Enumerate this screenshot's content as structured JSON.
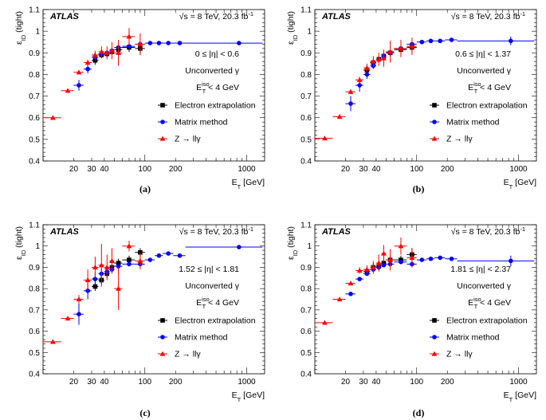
{
  "chart_data": [
    {
      "type": "scatter",
      "panel_label": "(a)",
      "experiment": "ATLAS",
      "energy_label": "√s = 8 TeV, 20.3 fb",
      "energy_exp": "-1",
      "eta_region": "0 ≤ |η| < 0.6",
      "conversion": "Unconverted γ",
      "iso_cut": {
        "base": "E",
        "sub": "T",
        "sup": "iso",
        "rest": " < 4 GeV"
      },
      "ylabel": {
        "base": "ε",
        "sub": "ID",
        "rest": " (tight)"
      },
      "xlabel": {
        "base": "E",
        "sub": "T",
        "rest": " [GeV]"
      },
      "xscale": "log",
      "xlim": [
        10,
        1500
      ],
      "ylim": [
        0.4,
        1.1
      ],
      "yticks": [
        "0.4",
        "0.5",
        "0.6",
        "0.7",
        "0.8",
        "0.9",
        "1",
        "1.1"
      ],
      "xticks": [
        "20",
        "30",
        "40",
        "100",
        "200",
        "1000"
      ],
      "legend": [
        "Electron extrapolation",
        "Matrix method",
        "Z → llγ"
      ],
      "series": [
        {
          "name": "Electron extrapolation",
          "color": "#000000",
          "marker": "square",
          "x": [
            32.5,
            37.5,
            42.5,
            47.5,
            55,
            70,
            90
          ],
          "xerr": [
            2.5,
            2.5,
            2.5,
            2.5,
            5,
            10,
            10
          ],
          "y": [
            0.865,
            0.89,
            0.895,
            0.905,
            0.915,
            0.925,
            0.92
          ],
          "yerr": [
            0.02,
            0.015,
            0.015,
            0.015,
            0.015,
            0.02,
            0.025
          ]
        },
        {
          "name": "Matrix method",
          "color": "#0000ff",
          "marker": "circle",
          "x": [
            22.5,
            27.5,
            32.5,
            37.5,
            42.5,
            47.5,
            55,
            70,
            90,
            112.5,
            137.5,
            170,
            220,
            840
          ],
          "xerr": [
            2.5,
            2.5,
            2.5,
            2.5,
            2.5,
            2.5,
            5,
            10,
            10,
            12.5,
            12.5,
            20,
            30,
            590
          ],
          "y": [
            0.75,
            0.825,
            0.88,
            0.895,
            0.9,
            0.91,
            0.925,
            0.93,
            0.94,
            0.945,
            0.945,
            0.945,
            0.945,
            0.945
          ],
          "yerr": [
            0.025,
            0.02,
            0.015,
            0.01,
            0.01,
            0.008,
            0.008,
            0.006,
            0.006,
            0.006,
            0.006,
            0.006,
            0.006,
            0.008
          ]
        },
        {
          "name": "Z → llγ",
          "color": "#ff0000",
          "marker": "triangle",
          "x": [
            12.5,
            17.5,
            22.5,
            27.5,
            32.5,
            37.5,
            42.5,
            47.5,
            55,
            70,
            90
          ],
          "xerr": [
            2.5,
            2.5,
            2.5,
            2.5,
            2.5,
            2.5,
            2.5,
            2.5,
            5,
            10,
            10
          ],
          "y": [
            0.6,
            0.725,
            0.81,
            0.855,
            0.89,
            0.905,
            0.9,
            0.91,
            0.9,
            0.975,
            0.94
          ],
          "yerr": [
            0.004,
            0.005,
            0.008,
            0.012,
            0.02,
            0.025,
            0.03,
            0.04,
            0.06,
            0.04,
            0.05
          ]
        }
      ]
    },
    {
      "type": "scatter",
      "panel_label": "(b)",
      "experiment": "ATLAS",
      "energy_label": "√s = 8 TeV, 20.3 fb",
      "energy_exp": "-1",
      "eta_region": "0.6 ≤ |η| < 1.37",
      "conversion": "Unconverted γ",
      "iso_cut": {
        "base": "E",
        "sub": "T",
        "sup": "iso",
        "rest": " < 4 GeV"
      },
      "ylabel": {
        "base": "ε",
        "sub": "ID",
        "rest": " (tight)"
      },
      "xlabel": {
        "base": "E",
        "sub": "T",
        "rest": " [GeV]"
      },
      "xscale": "log",
      "xlim": [
        10,
        1500
      ],
      "ylim": [
        0.4,
        1.1
      ],
      "yticks": [
        "0.4",
        "0.5",
        "0.6",
        "0.7",
        "0.8",
        "0.9",
        "1",
        "1.1"
      ],
      "xticks": [
        "20",
        "30",
        "40",
        "100",
        "200",
        "1000"
      ],
      "legend": [
        "Electron extrapolation",
        "Matrix method",
        "Z → llγ"
      ],
      "series": [
        {
          "name": "Electron extrapolation",
          "color": "#000000",
          "marker": "square",
          "x": [
            32.5,
            37.5,
            42.5,
            47.5,
            55,
            70,
            90
          ],
          "xerr": [
            2.5,
            2.5,
            2.5,
            2.5,
            5,
            10,
            10
          ],
          "y": [
            0.82,
            0.855,
            0.87,
            0.885,
            0.9,
            0.915,
            0.925
          ],
          "yerr": [
            0.02,
            0.015,
            0.015,
            0.015,
            0.015,
            0.02,
            0.02
          ]
        },
        {
          "name": "Matrix method",
          "color": "#0000ff",
          "marker": "circle",
          "x": [
            22.5,
            27.5,
            32.5,
            37.5,
            42.5,
            47.5,
            55,
            70,
            90,
            112.5,
            137.5,
            170,
            220,
            840
          ],
          "xerr": [
            2.5,
            2.5,
            2.5,
            2.5,
            2.5,
            2.5,
            5,
            10,
            10,
            12.5,
            12.5,
            20,
            30,
            590
          ],
          "y": [
            0.665,
            0.75,
            0.8,
            0.84,
            0.87,
            0.885,
            0.9,
            0.92,
            0.94,
            0.95,
            0.955,
            0.955,
            0.96,
            0.955
          ],
          "yerr": [
            0.035,
            0.03,
            0.02,
            0.015,
            0.012,
            0.01,
            0.008,
            0.006,
            0.006,
            0.006,
            0.005,
            0.005,
            0.005,
            0.02
          ]
        },
        {
          "name": "Z → llγ",
          "color": "#ff0000",
          "marker": "triangle",
          "x": [
            12.5,
            17.5,
            22.5,
            27.5,
            32.5,
            37.5,
            42.5,
            47.5,
            55,
            70,
            90
          ],
          "xerr": [
            2.5,
            2.5,
            2.5,
            2.5,
            2.5,
            2.5,
            2.5,
            2.5,
            5,
            10,
            10
          ],
          "y": [
            0.505,
            0.605,
            0.72,
            0.775,
            0.83,
            0.86,
            0.87,
            0.875,
            0.905,
            0.92,
            0.93
          ],
          "yerr": [
            0.004,
            0.006,
            0.01,
            0.015,
            0.02,
            0.025,
            0.03,
            0.04,
            0.05,
            0.04,
            0.04
          ]
        }
      ]
    },
    {
      "type": "scatter",
      "panel_label": "(c)",
      "experiment": "ATLAS",
      "energy_label": "√s = 8 TeV, 20.3 fb",
      "energy_exp": "-1",
      "eta_region": "1.52 ≤ |η| < 1.81",
      "conversion": "Unconverted γ",
      "iso_cut": {
        "base": "E",
        "sub": "T",
        "sup": "iso",
        "rest": " < 4 GeV"
      },
      "ylabel": {
        "base": "ε",
        "sub": "ID",
        "rest": " (tight)"
      },
      "xlabel": {
        "base": "E",
        "sub": "T",
        "rest": " [GeV]"
      },
      "xscale": "log",
      "xlim": [
        10,
        1500
      ],
      "ylim": [
        0.4,
        1.1
      ],
      "yticks": [
        "0.4",
        "0.5",
        "0.6",
        "0.7",
        "0.8",
        "0.9",
        "1",
        "1.1"
      ],
      "xticks": [
        "20",
        "30",
        "40",
        "100",
        "200",
        "1000"
      ],
      "legend": [
        "Electron extrapolation",
        "Matrix method",
        "Z → llγ"
      ],
      "series": [
        {
          "name": "Electron extrapolation",
          "color": "#000000",
          "marker": "square",
          "x": [
            32.5,
            37.5,
            42.5,
            47.5,
            55,
            70,
            90
          ],
          "xerr": [
            2.5,
            2.5,
            2.5,
            2.5,
            5,
            10,
            10
          ],
          "y": [
            0.81,
            0.84,
            0.87,
            0.9,
            0.92,
            0.935,
            0.97
          ],
          "yerr": [
            0.02,
            0.02,
            0.02,
            0.02,
            0.02,
            0.02,
            0.02
          ]
        },
        {
          "name": "Matrix method",
          "color": "#0000ff",
          "marker": "circle",
          "x": [
            22.5,
            27.5,
            32.5,
            37.5,
            42.5,
            47.5,
            55,
            70,
            90,
            112.5,
            137.5,
            170,
            220,
            840
          ],
          "xerr": [
            2.5,
            2.5,
            2.5,
            2.5,
            2.5,
            2.5,
            5,
            10,
            10,
            12.5,
            12.5,
            20,
            30,
            590
          ],
          "y": [
            0.68,
            0.79,
            0.845,
            0.87,
            0.88,
            0.89,
            0.905,
            0.915,
            0.915,
            0.935,
            0.955,
            0.965,
            0.955,
            0.995
          ],
          "yerr": [
            0.05,
            0.04,
            0.03,
            0.025,
            0.02,
            0.015,
            0.012,
            0.01,
            0.01,
            0.008,
            0.008,
            0.008,
            0.008,
            0.008
          ]
        },
        {
          "name": "Z → llγ",
          "color": "#ff0000",
          "marker": "triangle",
          "x": [
            12.5,
            17.5,
            22.5,
            27.5,
            32.5,
            37.5,
            42.5,
            47.5,
            55,
            70,
            90
          ],
          "xerr": [
            2.5,
            2.5,
            2.5,
            2.5,
            2.5,
            2.5,
            2.5,
            2.5,
            5,
            10,
            10
          ],
          "y": [
            0.55,
            0.66,
            0.75,
            0.84,
            0.9,
            0.91,
            0.9,
            0.93,
            0.8,
            1.0,
            0.93
          ],
          "yerr": [
            0.008,
            0.01,
            0.02,
            0.05,
            0.05,
            0.1,
            0.06,
            0.06,
            0.1,
            0.025,
            0.04
          ]
        }
      ]
    },
    {
      "type": "scatter",
      "panel_label": "(d)",
      "experiment": "ATLAS",
      "energy_label": "√s = 8 TeV, 20.3 fb",
      "energy_exp": "-1",
      "eta_region": "1.81 ≤ |η| < 2.37",
      "conversion": "Unconverted γ",
      "iso_cut": {
        "base": "E",
        "sub": "T",
        "sup": "iso",
        "rest": " < 4 GeV"
      },
      "ylabel": {
        "base": "ε",
        "sub": "ID",
        "rest": " (tight)"
      },
      "xlabel": {
        "base": "E",
        "sub": "T",
        "rest": " [GeV]"
      },
      "xscale": "log",
      "xlim": [
        10,
        1500
      ],
      "ylim": [
        0.4,
        1.1
      ],
      "yticks": [
        "0.4",
        "0.5",
        "0.6",
        "0.7",
        "0.8",
        "0.9",
        "1",
        "1.1"
      ],
      "xticks": [
        "20",
        "30",
        "40",
        "100",
        "200",
        "1000"
      ],
      "legend": [
        "Electron extrapolation",
        "Matrix method",
        "Z → llγ"
      ],
      "series": [
        {
          "name": "Electron extrapolation",
          "color": "#000000",
          "marker": "square",
          "x": [
            32.5,
            37.5,
            42.5,
            47.5,
            55,
            70,
            90
          ],
          "xerr": [
            2.5,
            2.5,
            2.5,
            2.5,
            5,
            10,
            10
          ],
          "y": [
            0.88,
            0.9,
            0.905,
            0.92,
            0.935,
            0.935,
            0.96
          ],
          "yerr": [
            0.02,
            0.02,
            0.02,
            0.02,
            0.02,
            0.02,
            0.03
          ]
        },
        {
          "name": "Matrix method",
          "color": "#0000ff",
          "marker": "circle",
          "x": [
            22.5,
            27.5,
            32.5,
            37.5,
            42.5,
            47.5,
            55,
            70,
            90,
            112.5,
            137.5,
            170,
            220,
            840
          ],
          "xerr": [
            2.5,
            2.5,
            2.5,
            2.5,
            2.5,
            2.5,
            5,
            10,
            10,
            12.5,
            12.5,
            20,
            30,
            590
          ],
          "y": [
            0.775,
            0.845,
            0.87,
            0.89,
            0.9,
            0.91,
            0.915,
            0.925,
            0.915,
            0.935,
            0.94,
            0.945,
            0.94,
            0.93
          ],
          "yerr": [
            0.01,
            0.01,
            0.01,
            0.01,
            0.008,
            0.008,
            0.008,
            0.008,
            0.015,
            0.008,
            0.008,
            0.008,
            0.008,
            0.025
          ]
        },
        {
          "name": "Z → llγ",
          "color": "#ff0000",
          "marker": "triangle",
          "x": [
            12.5,
            17.5,
            22.5,
            27.5,
            32.5,
            37.5,
            42.5,
            47.5,
            55,
            70,
            90
          ],
          "xerr": [
            2.5,
            2.5,
            2.5,
            2.5,
            2.5,
            2.5,
            2.5,
            2.5,
            5,
            10,
            10
          ],
          "y": [
            0.64,
            0.75,
            0.825,
            0.885,
            0.89,
            0.9,
            0.92,
            0.965,
            0.935,
            1.0,
            0.945
          ],
          "yerr": [
            0.005,
            0.006,
            0.01,
            0.015,
            0.02,
            0.03,
            0.04,
            0.04,
            0.05,
            0.04,
            0.04
          ]
        }
      ]
    }
  ]
}
